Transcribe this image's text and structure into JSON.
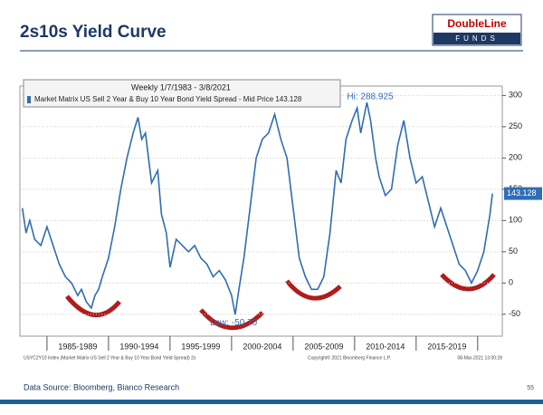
{
  "header": {
    "title": "2s10s Yield Curve",
    "logo_top": "DoubleLine",
    "logo_bottom": "FUNDS"
  },
  "chart_data": {
    "type": "line",
    "legend_title": "Weekly 1/7/1983 - 3/8/2021",
    "series": [
      {
        "name": "Market Matrix US Sell 2 Year & Buy 10 Year Bond Yield Spread - Mid Price 143.128",
        "color": "#2f6db5",
        "x": [
          1983.0,
          1983.3,
          1983.6,
          1984.0,
          1984.5,
          1985.0,
          1985.5,
          1986.0,
          1986.5,
          1987.0,
          1987.5,
          1987.8,
          1988.2,
          1988.6,
          1988.9,
          1989.2,
          1989.5,
          1990.0,
          1990.5,
          1991.0,
          1991.5,
          1992.0,
          1992.4,
          1992.7,
          1993.0,
          1993.5,
          1994.0,
          1994.3,
          1994.7,
          1995.0,
          1995.5,
          1996.0,
          1996.5,
          1997.0,
          1997.5,
          1998.0,
          1998.5,
          1999.0,
          1999.5,
          2000.0,
          2000.3,
          2000.6,
          2001.0,
          2001.5,
          2002.0,
          2002.5,
          2003.0,
          2003.5,
          2004.0,
          2004.5,
          2005.0,
          2005.5,
          2006.0,
          2006.5,
          2007.0,
          2007.5,
          2008.0,
          2008.5,
          2008.9,
          2009.3,
          2009.8,
          2010.2,
          2010.5,
          2011.0,
          2011.3,
          2011.7,
          2012.0,
          2012.5,
          2013.0,
          2013.5,
          2014.0,
          2014.5,
          2015.0,
          2015.5,
          2016.0,
          2016.5,
          2017.0,
          2017.5,
          2018.0,
          2018.5,
          2019.0,
          2019.5,
          2020.0,
          2020.5,
          2021.0,
          2021.2
        ],
        "values": [
          120,
          80,
          100,
          70,
          60,
          90,
          60,
          30,
          10,
          0,
          -20,
          -10,
          -30,
          -40,
          -20,
          -10,
          10,
          40,
          90,
          150,
          200,
          240,
          265,
          230,
          240,
          160,
          180,
          110,
          80,
          25,
          70,
          60,
          50,
          60,
          40,
          30,
          10,
          20,
          5,
          -20,
          -50.7,
          -10,
          40,
          120,
          200,
          230,
          240,
          270,
          230,
          200,
          120,
          40,
          10,
          -10,
          -10,
          10,
          80,
          180,
          160,
          230,
          260,
          280,
          240,
          288.925,
          260,
          200,
          170,
          140,
          150,
          220,
          260,
          200,
          160,
          170,
          130,
          90,
          120,
          90,
          60,
          30,
          20,
          0,
          20,
          50,
          110,
          143.128
        ]
      }
    ],
    "xlim": [
      1982.8,
      2022.0
    ],
    "xticks": [
      {
        "value": 1987.5,
        "label": "1985-1989"
      },
      {
        "value": 1992.5,
        "label": "1990-1994"
      },
      {
        "value": 1997.5,
        "label": "1995-1999"
      },
      {
        "value": 2002.5,
        "label": "2000-2004"
      },
      {
        "value": 2007.5,
        "label": "2005-2009"
      },
      {
        "value": 2012.5,
        "label": "2010-2014"
      },
      {
        "value": 2017.5,
        "label": "2015-2019"
      }
    ],
    "xminorticks": [
      1985,
      1990,
      1995,
      2000,
      2005,
      2010,
      2015,
      2020
    ],
    "ylim": [
      -85,
      315
    ],
    "yticks": [
      -50,
      0,
      50,
      100,
      150,
      200,
      250,
      300
    ],
    "annotations": [
      "Hi: 288.925",
      "Low: -50.70"
    ],
    "footer_left": "USYC2Y10 Index (Market Matrix US Sell 2 Year & Buy 10 Year Bond Yield Spread) 2s",
    "footer_mid": "Copyright© 2021 Bloomberg Finance L.P.",
    "footer_right": "08-Mar-2021 13:00:28"
  },
  "footer": {
    "source": "Data Source: Bloomberg, Bianco Research",
    "page": "55"
  }
}
